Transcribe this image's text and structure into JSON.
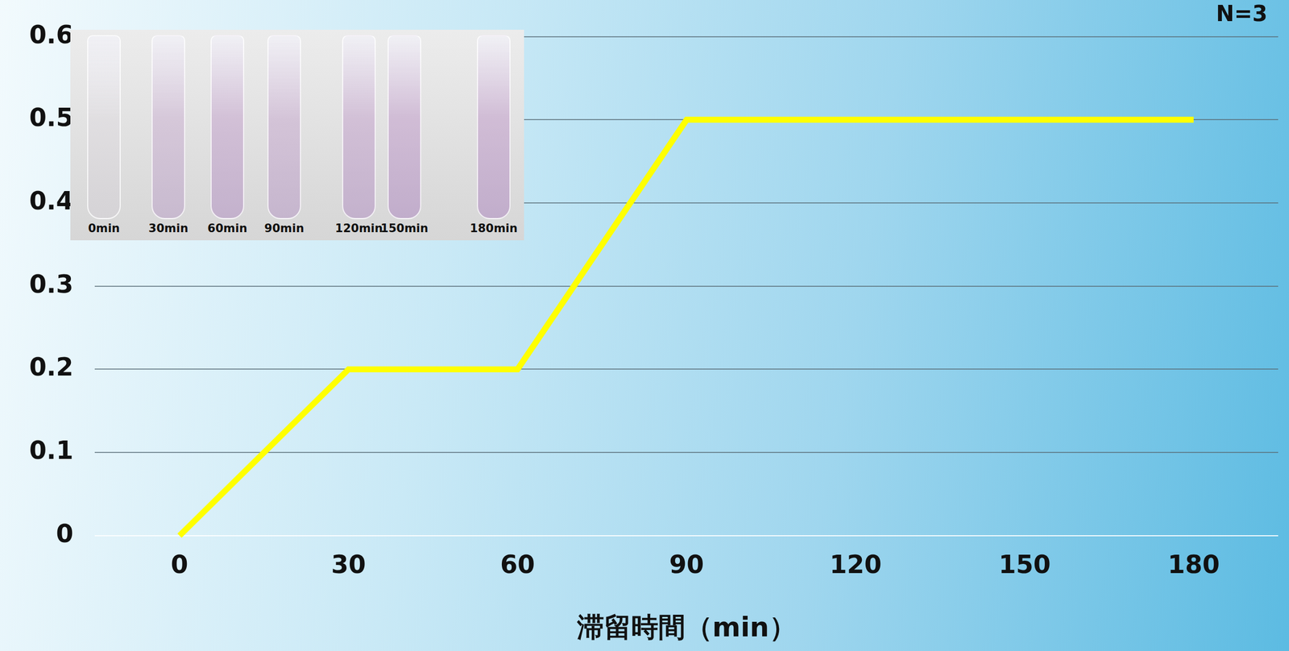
{
  "chart_data": {
    "type": "line",
    "categories": [
      "0",
      "30",
      "60",
      "90",
      "120",
      "150",
      "180"
    ],
    "values": [
      0,
      0.2,
      0.2,
      0.5,
      0.5,
      0.5,
      0.5
    ],
    "color": "#ffff00",
    "marker": "none",
    "xlabel": "滞留時間（min）",
    "ylim": [
      0,
      0.6
    ],
    "yticks": [
      0,
      0.1,
      0.2,
      0.3,
      0.4,
      0.5,
      0.6
    ],
    "grid": true,
    "annotations": [
      "N=3"
    ],
    "inset_labels": [
      "0min",
      "30min",
      "60min",
      "90min",
      "120min",
      "150min",
      "180min"
    ]
  }
}
